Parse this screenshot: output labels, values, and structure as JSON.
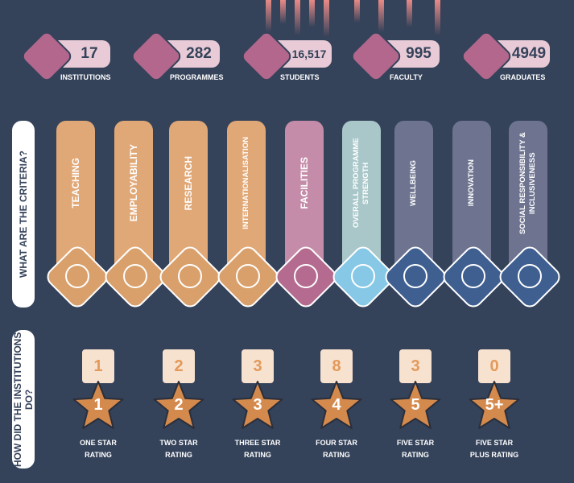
{
  "stats": [
    {
      "value": "17",
      "label": "INSTITUTIONS"
    },
    {
      "value": "282",
      "label": "PROGRAMMES"
    },
    {
      "value": "16,517",
      "label": "STUDENTS"
    },
    {
      "value": "995",
      "label": "FACULTY"
    },
    {
      "value": "4949",
      "label": "GRADUATES"
    }
  ],
  "criteria": {
    "title": "WHAT ARE THE CRITERIA?",
    "items": [
      "TEACHING",
      "EMPLOYABILITY",
      "RESEARCH",
      "INTERNATIONALISATION",
      "FACILITIES",
      "OVERALL PROGRAMME STRENGTH",
      "WELLBEING",
      "INNOVATION",
      "SOCIAL RESPONSIBILITY & INCLUSIVENESS"
    ]
  },
  "ratings": {
    "title": "HOW DID THE INSTITUTIONS DO?",
    "items": [
      {
        "count": 1,
        "star": "1",
        "label": "ONE STAR RATING"
      },
      {
        "count": 2,
        "star": "2",
        "label": "TWO STAR RATING"
      },
      {
        "count": 3,
        "star": "3",
        "label": "THREE STAR RATING"
      },
      {
        "count": 8,
        "star": "4",
        "label": "FOUR STAR RATING"
      },
      {
        "count": 3,
        "star": "5",
        "label": "FIVE STAR RATING"
      },
      {
        "count": 0,
        "star": "5+",
        "label": "FIVE STAR PLUS RATING"
      }
    ]
  }
}
